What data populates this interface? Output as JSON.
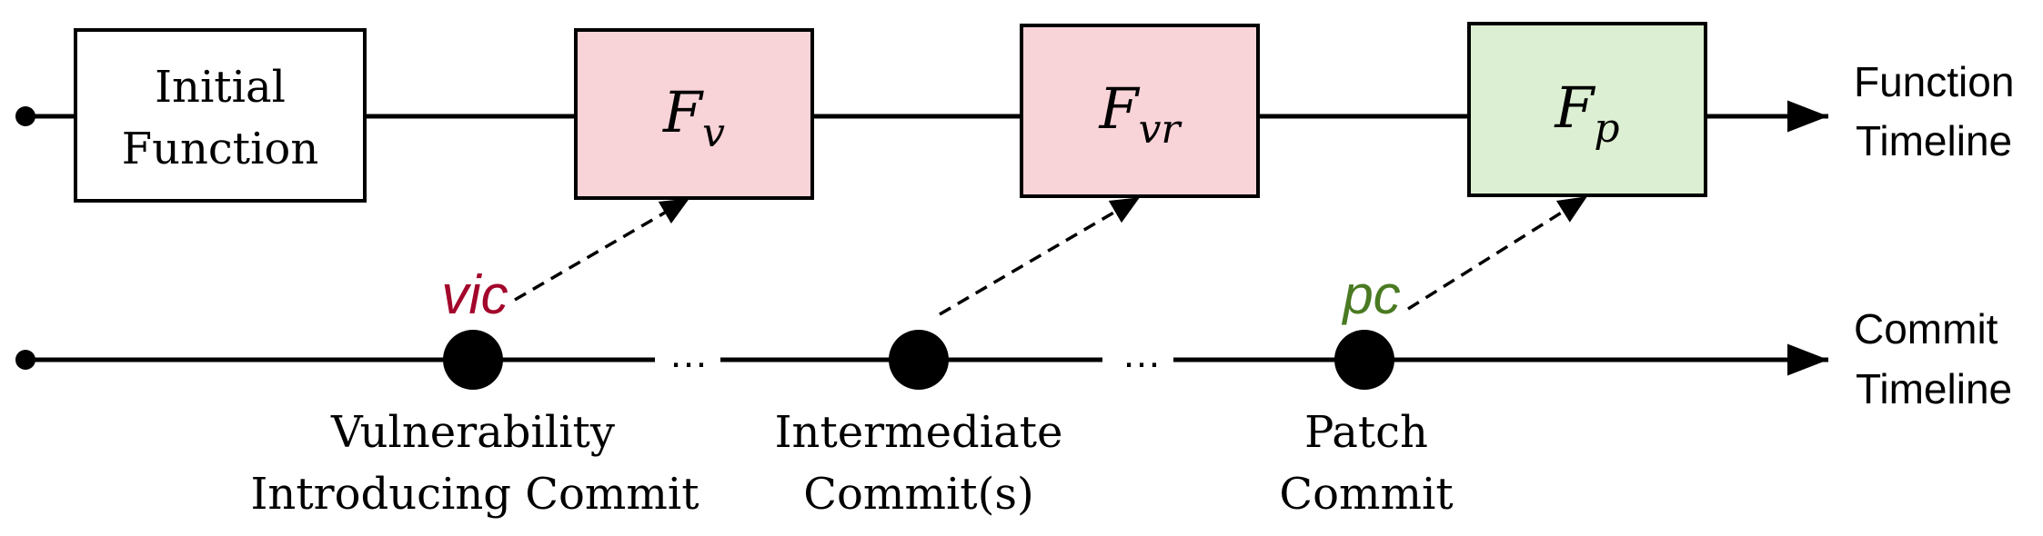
{
  "colors": {
    "line": "#000000",
    "vulnerable_fill": "#f8d3d8",
    "patched_fill": "#dcefd2",
    "initial_fill": "#ffffff",
    "vic_color": "#a3062b",
    "pc_color": "#4a7a22"
  },
  "function_timeline": {
    "label_line1": "Function",
    "label_line2": "Timeline",
    "boxes": {
      "initial": {
        "line1": "Initial",
        "line2": "Function"
      },
      "fv": {
        "base": "F",
        "sub": "v"
      },
      "fvr": {
        "base": "F",
        "sub": "vr"
      },
      "fp": {
        "base": "F",
        "sub": "p"
      }
    }
  },
  "commit_timeline": {
    "label_line1": "Commit",
    "label_line2": "Timeline",
    "ellipsis1": "…",
    "ellipsis2": "…",
    "commits": {
      "vic": {
        "tag": "vic",
        "line1": "Vulnerability",
        "line2": "Introducing Commit"
      },
      "intermediate": {
        "line1": "Intermediate",
        "line2": "Commit(s)"
      },
      "pc": {
        "tag": "pc",
        "line1": "Patch",
        "line2": "Commit"
      }
    }
  }
}
